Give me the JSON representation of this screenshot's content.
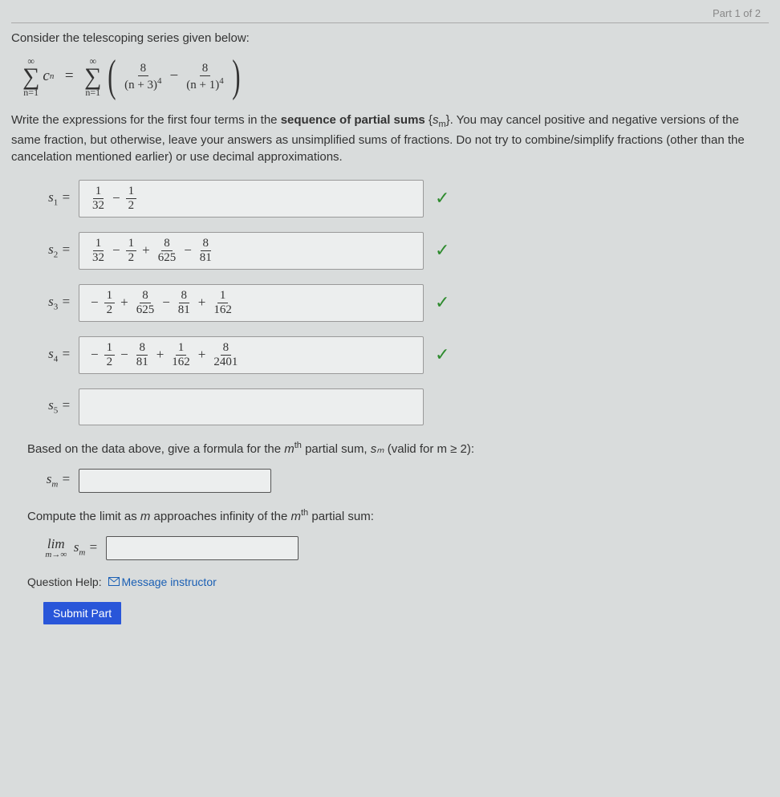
{
  "part_label": "Part 1 of 2",
  "prompt_intro": "Consider the telescoping series given below:",
  "series": {
    "lhs": {
      "top": "∞",
      "bot": "n=1",
      "term": "c",
      "term_sub": "n"
    },
    "rhs": {
      "top": "∞",
      "bot": "n=1",
      "frac1_num": "8",
      "frac1_den_base": "(n + 3)",
      "frac1_den_exp": "4",
      "frac2_num": "8",
      "frac2_den_base": "(n + 1)",
      "frac2_den_exp": "4"
    }
  },
  "instructions": "Write the expressions for the first four terms in the sequence of partial sums {sₘ}. You may cancel positive and negative versions of the same fraction, but otherwise, leave your answers as unsimplified sums of fractions. Do not try to combine/simplify fractions (other than the cancelation mentioned earlier) or use decimal approximations.",
  "rows": [
    {
      "label_var": "s",
      "label_sub": "1",
      "terms": [
        {
          "num": "1",
          "den": "32"
        },
        {
          "op": "−"
        },
        {
          "num": "1",
          "den": "2"
        }
      ],
      "checked": true
    },
    {
      "label_var": "s",
      "label_sub": "2",
      "terms": [
        {
          "num": "1",
          "den": "32"
        },
        {
          "op": "−"
        },
        {
          "num": "1",
          "den": "2"
        },
        {
          "op": "+"
        },
        {
          "num": "8",
          "den": "625"
        },
        {
          "op": "−"
        },
        {
          "num": "8",
          "den": "81"
        }
      ],
      "checked": true
    },
    {
      "label_var": "s",
      "label_sub": "3",
      "terms": [
        {
          "op": "−"
        },
        {
          "num": "1",
          "den": "2"
        },
        {
          "op": "+"
        },
        {
          "num": "8",
          "den": "625"
        },
        {
          "op": "−"
        },
        {
          "num": "8",
          "den": "81"
        },
        {
          "op": "+"
        },
        {
          "num": "1",
          "den": "162"
        }
      ],
      "checked": true
    },
    {
      "label_var": "s",
      "label_sub": "4",
      "terms": [
        {
          "op": "−"
        },
        {
          "num": "1",
          "den": "2"
        },
        {
          "op": "−"
        },
        {
          "num": "8",
          "den": "81"
        },
        {
          "op": "+"
        },
        {
          "num": "1",
          "den": "162"
        },
        {
          "op": "+"
        },
        {
          "num": "8",
          "den": "2401"
        }
      ],
      "checked": true
    },
    {
      "label_var": "s",
      "label_sub": "5",
      "terms": [],
      "checked": false
    }
  ],
  "formula_prompt_pre": "Based on the data above, give a formula for the ",
  "formula_prompt_mth": "m",
  "formula_prompt_th": "th",
  "formula_prompt_mid": " partial sum, ",
  "formula_prompt_sm": "sₘ",
  "formula_prompt_post": " (valid for m ≥ 2):",
  "sm_label_var": "s",
  "sm_label_sub": "m",
  "limit_prompt_pre": "Compute the limit as ",
  "limit_prompt_m": "m",
  "limit_prompt_mid": " approaches infinity of the ",
  "limit_prompt_mth": "m",
  "limit_prompt_th": "th",
  "limit_prompt_post": " partial sum:",
  "lim_label_top": "lim",
  "lim_label_bot": "m→∞",
  "lim_var": "s",
  "lim_var_sub": "m",
  "help_label": "Question Help:",
  "help_link": "Message instructor",
  "submit_label": "Submit Part",
  "colors": {
    "bg": "#d9dcdc",
    "text": "#333",
    "check": "#2e8b2e",
    "link": "#1a5fb4",
    "button_bg": "#2956d9",
    "button_fg": "#ffffff",
    "border": "#999"
  }
}
